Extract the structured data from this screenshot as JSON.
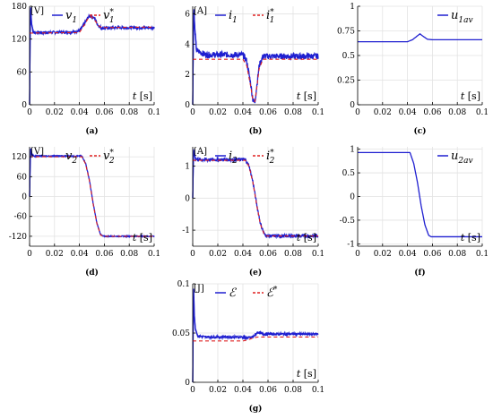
{
  "chart_data": [
    {
      "id": "a",
      "type": "line",
      "caption": "(a)",
      "yunit": "[V]",
      "xlabel": "t [s]",
      "xlim": [
        0,
        0.1
      ],
      "ylim": [
        0,
        180
      ],
      "xticks": [
        "0",
        "0.02",
        "0.04",
        "0.06",
        "0.08",
        "0.1"
      ],
      "yticks": [
        {
          "v": 0,
          "label": "0"
        },
        {
          "v": 60,
          "label": "60"
        },
        {
          "v": 120,
          "label": "120"
        },
        {
          "v": 180,
          "label": "180"
        }
      ],
      "legend": {
        "position": "top-right",
        "entries": [
          {
            "text": "v",
            "sub": "1",
            "sup": "",
            "style": "solid"
          },
          {
            "text": "v",
            "sub": "1",
            "sup": "*",
            "style": "dashed"
          }
        ]
      },
      "series": [
        {
          "style": "solid",
          "color": "#1f1fd0",
          "noise": 2.5,
          "points": [
            [
              0,
              0
            ],
            [
              0.0005,
              140
            ],
            [
              0.001,
              178
            ],
            [
              0.0015,
              150
            ],
            [
              0.003,
              132
            ],
            [
              0.01,
              132
            ],
            [
              0.035,
              133
            ],
            [
              0.04,
              135
            ],
            [
              0.044,
              148
            ],
            [
              0.047,
              160
            ],
            [
              0.0495,
              163
            ],
            [
              0.052,
              158
            ],
            [
              0.055,
              145
            ],
            [
              0.058,
              140
            ],
            [
              0.07,
              141
            ],
            [
              0.1,
              141
            ]
          ]
        },
        {
          "style": "dashed",
          "color": "#e02020",
          "noise": 0,
          "points": [
            [
              0,
              131
            ],
            [
              0.04,
              132
            ],
            [
              0.044,
              146
            ],
            [
              0.047,
              158
            ],
            [
              0.0495,
              161
            ],
            [
              0.052,
              156
            ],
            [
              0.055,
              145
            ],
            [
              0.058,
              141
            ],
            [
              0.1,
              142
            ]
          ]
        }
      ]
    },
    {
      "id": "b",
      "type": "line",
      "caption": "(b)",
      "yunit": "[A]",
      "xlabel": "t [s]",
      "xlim": [
        0,
        0.1
      ],
      "ylim": [
        0,
        6.5
      ],
      "xticks": [
        "0",
        "0.02",
        "0.04",
        "0.06",
        "0.08",
        "0.1"
      ],
      "yticks": [
        {
          "v": 0,
          "label": "0"
        },
        {
          "v": 2,
          "label": "2"
        },
        {
          "v": 4,
          "label": "4"
        },
        {
          "v": 6,
          "label": "6"
        }
      ],
      "legend": {
        "position": "top-right",
        "entries": [
          {
            "text": "i",
            "sub": "1",
            "sup": "",
            "style": "solid"
          },
          {
            "text": "i",
            "sub": "1",
            "sup": "*",
            "style": "dashed"
          }
        ]
      },
      "series": [
        {
          "style": "solid",
          "color": "#1f1fd0",
          "noise": 0.2,
          "points": [
            [
              0,
              0
            ],
            [
              0.0005,
              4.5
            ],
            [
              0.001,
              6.3
            ],
            [
              0.0015,
              5.2
            ],
            [
              0.003,
              3.6
            ],
            [
              0.01,
              3.3
            ],
            [
              0.04,
              3.3
            ],
            [
              0.043,
              2.9
            ],
            [
              0.046,
              1.5
            ],
            [
              0.048,
              0.3
            ],
            [
              0.0495,
              0.15
            ],
            [
              0.051,
              1.2
            ],
            [
              0.053,
              2.6
            ],
            [
              0.056,
              3.2
            ],
            [
              0.1,
              3.2
            ]
          ]
        },
        {
          "style": "dashed",
          "color": "#e02020",
          "noise": 0,
          "points": [
            [
              0,
              3.0
            ],
            [
              0.04,
              3.0
            ],
            [
              0.043,
              2.6
            ],
            [
              0.046,
              1.3
            ],
            [
              0.048,
              0.35
            ],
            [
              0.0495,
              0.2
            ],
            [
              0.051,
              1.1
            ],
            [
              0.053,
              2.4
            ],
            [
              0.056,
              3.0
            ],
            [
              0.1,
              3.0
            ]
          ]
        }
      ]
    },
    {
      "id": "c",
      "type": "line",
      "caption": "(c)",
      "yunit": "",
      "xlabel": "t [s]",
      "xlim": [
        0,
        0.1
      ],
      "ylim": [
        0,
        1
      ],
      "xticks": [
        "0",
        "0.02",
        "0.04",
        "0.06",
        "0.08",
        "0.1"
      ],
      "yticks": [
        {
          "v": 0,
          "label": "0"
        },
        {
          "v": 0.25,
          "label": "0.25"
        },
        {
          "v": 0.5,
          "label": "0.5"
        },
        {
          "v": 0.75,
          "label": "0.75"
        },
        {
          "v": 1,
          "label": "1"
        }
      ],
      "legend": {
        "position": "top-right",
        "entries": [
          {
            "text": "u",
            "sub": "1av",
            "sup": "",
            "style": "solid"
          }
        ]
      },
      "series": [
        {
          "style": "solid",
          "color": "#1f1fd0",
          "noise": 0,
          "points": [
            [
              0,
              0.64
            ],
            [
              0.04,
              0.64
            ],
            [
              0.044,
              0.66
            ],
            [
              0.048,
              0.7
            ],
            [
              0.05,
              0.72
            ],
            [
              0.052,
              0.7
            ],
            [
              0.056,
              0.665
            ],
            [
              0.06,
              0.66
            ],
            [
              0.1,
              0.66
            ]
          ]
        }
      ]
    },
    {
      "id": "d",
      "type": "line",
      "caption": "(d)",
      "yunit": "[V]",
      "xlabel": "t [s]",
      "xlim": [
        0,
        0.1
      ],
      "ylim": [
        -150,
        150
      ],
      "xticks": [
        "0",
        "0.02",
        "0.04",
        "0.06",
        "0.08",
        "0.1"
      ],
      "yticks": [
        {
          "v": -120,
          "label": "-120"
        },
        {
          "v": -60,
          "label": "-60"
        },
        {
          "v": 0,
          "label": "0"
        },
        {
          "v": 60,
          "label": "60"
        },
        {
          "v": 120,
          "label": "120"
        }
      ],
      "legend": {
        "position": "top-right",
        "entries": [
          {
            "text": "v",
            "sub": "2",
            "sup": "",
            "style": "solid"
          },
          {
            "text": "v",
            "sub": "2",
            "sup": "*",
            "style": "dashed"
          }
        ]
      },
      "series": [
        {
          "style": "solid",
          "color": "#1f1fd0",
          "noise": 1.5,
          "points": [
            [
              0,
              0
            ],
            [
              0.0005,
              100
            ],
            [
              0.001,
              145
            ],
            [
              0.002,
              125
            ],
            [
              0.004,
              122
            ],
            [
              0.042,
              122
            ],
            [
              0.045,
              100
            ],
            [
              0.048,
              50
            ],
            [
              0.051,
              -20
            ],
            [
              0.054,
              -80
            ],
            [
              0.057,
              -115
            ],
            [
              0.059,
              -120
            ],
            [
              0.1,
              -120
            ]
          ]
        },
        {
          "style": "dashed",
          "color": "#e02020",
          "noise": 0,
          "points": [
            [
              0,
              120
            ],
            [
              0.042,
              120
            ],
            [
              0.045,
              98
            ],
            [
              0.048,
              48
            ],
            [
              0.051,
              -22
            ],
            [
              0.054,
              -82
            ],
            [
              0.057,
              -116
            ],
            [
              0.059,
              -120
            ],
            [
              0.1,
              -120
            ]
          ]
        }
      ]
    },
    {
      "id": "e",
      "type": "line",
      "caption": "(e)",
      "yunit": "[A]",
      "xlabel": "t [s]",
      "xlim": [
        0,
        0.1
      ],
      "ylim": [
        -1.5,
        1.6
      ],
      "xticks": [
        "0",
        "0.02",
        "0.04",
        "0.06",
        "0.08",
        "0.1"
      ],
      "yticks": [
        {
          "v": -1,
          "label": "-1"
        },
        {
          "v": 0,
          "label": "0"
        },
        {
          "v": 1,
          "label": "1"
        }
      ],
      "legend": {
        "position": "top-right",
        "entries": [
          {
            "text": "i",
            "sub": "2",
            "sup": "",
            "style": "solid"
          },
          {
            "text": "i",
            "sub": "2",
            "sup": "*",
            "style": "dashed"
          }
        ]
      },
      "series": [
        {
          "style": "solid",
          "color": "#1f1fd0",
          "noise": 0.05,
          "points": [
            [
              0,
              0
            ],
            [
              0.0005,
              1.2
            ],
            [
              0.001,
              1.5
            ],
            [
              0.002,
              1.25
            ],
            [
              0.004,
              1.2
            ],
            [
              0.042,
              1.2
            ],
            [
              0.045,
              1.0
            ],
            [
              0.048,
              0.5
            ],
            [
              0.051,
              -0.2
            ],
            [
              0.054,
              -0.8
            ],
            [
              0.057,
              -1.12
            ],
            [
              0.059,
              -1.18
            ],
            [
              0.1,
              -1.18
            ]
          ]
        },
        {
          "style": "dashed",
          "color": "#e02020",
          "noise": 0,
          "points": [
            [
              0,
              1.18
            ],
            [
              0.042,
              1.18
            ],
            [
              0.045,
              0.98
            ],
            [
              0.048,
              0.48
            ],
            [
              0.051,
              -0.22
            ],
            [
              0.054,
              -0.82
            ],
            [
              0.057,
              -1.13
            ],
            [
              0.059,
              -1.18
            ],
            [
              0.1,
              -1.18
            ]
          ]
        }
      ]
    },
    {
      "id": "f",
      "type": "line",
      "caption": "(f)",
      "yunit": "",
      "xlabel": "t [s]",
      "xlim": [
        0,
        0.1
      ],
      "ylim": [
        -1.05,
        1.05
      ],
      "xticks": [
        "0",
        "0.02",
        "0.04",
        "0.06",
        "0.08",
        "0.1"
      ],
      "yticks": [
        {
          "v": -1,
          "label": "-1"
        },
        {
          "v": -0.5,
          "label": "-0.5"
        },
        {
          "v": 0,
          "label": "0"
        },
        {
          "v": 0.5,
          "label": "0.5"
        },
        {
          "v": 1,
          "label": "1"
        }
      ],
      "legend": {
        "position": "top-right",
        "entries": [
          {
            "text": "u",
            "sub": "2av",
            "sup": "",
            "style": "solid"
          }
        ]
      },
      "series": [
        {
          "style": "solid",
          "color": "#1f1fd0",
          "noise": 0,
          "points": [
            [
              0,
              0.93
            ],
            [
              0.042,
              0.93
            ],
            [
              0.045,
              0.7
            ],
            [
              0.048,
              0.3
            ],
            [
              0.051,
              -0.2
            ],
            [
              0.054,
              -0.6
            ],
            [
              0.057,
              -0.82
            ],
            [
              0.059,
              -0.85
            ],
            [
              0.1,
              -0.85
            ]
          ]
        }
      ]
    },
    {
      "id": "g",
      "type": "line",
      "caption": "(g)",
      "yunit": "[J]",
      "xlabel": "t [s]",
      "xlim": [
        0,
        0.1
      ],
      "ylim": [
        0,
        0.1
      ],
      "xticks": [
        "0",
        "0.02",
        "0.04",
        "0.06",
        "0.08",
        "0.1"
      ],
      "yticks": [
        {
          "v": 0,
          "label": "0"
        },
        {
          "v": 0.05,
          "label": "0.05"
        },
        {
          "v": 0.1,
          "label": "0.1"
        }
      ],
      "legend": {
        "position": "top-right",
        "entries": [
          {
            "text": "ℰ",
            "sub": "",
            "sup": "",
            "style": "solid"
          },
          {
            "text": "ℰ",
            "sub": "",
            "sup": "*",
            "style": "dashed"
          }
        ]
      },
      "series": [
        {
          "style": "solid",
          "color": "#1f1fd0",
          "noise": 0.0012,
          "points": [
            [
              0,
              0
            ],
            [
              0.0004,
              0.06
            ],
            [
              0.0008,
              0.095
            ],
            [
              0.0012,
              0.07
            ],
            [
              0.002,
              0.055
            ],
            [
              0.004,
              0.047
            ],
            [
              0.01,
              0.046
            ],
            [
              0.04,
              0.046
            ],
            [
              0.044,
              0.045
            ],
            [
              0.048,
              0.046
            ],
            [
              0.052,
              0.051
            ],
            [
              0.056,
              0.049
            ],
            [
              0.1,
              0.049
            ]
          ]
        },
        {
          "style": "dashed",
          "color": "#e02020",
          "noise": 0,
          "points": [
            [
              0,
              0.042
            ],
            [
              0.04,
              0.042
            ],
            [
              0.044,
              0.043
            ],
            [
              0.048,
              0.045
            ],
            [
              0.052,
              0.046
            ],
            [
              0.1,
              0.046
            ]
          ]
        }
      ]
    }
  ]
}
